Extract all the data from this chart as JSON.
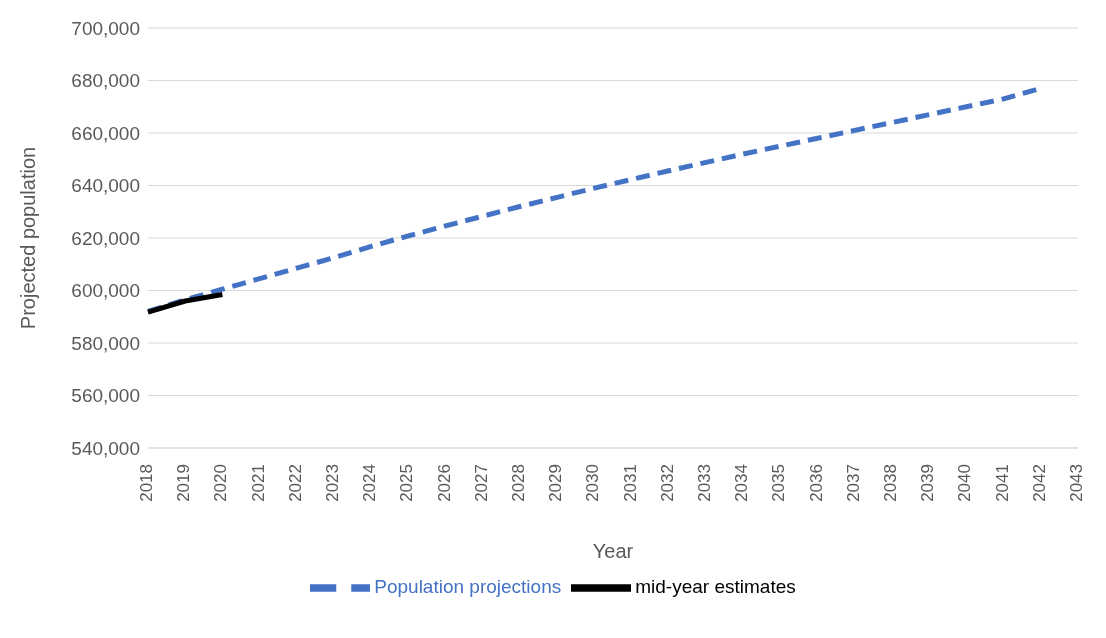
{
  "chart_data": {
    "type": "line",
    "xlabel": "Year",
    "ylabel": "Projected population",
    "categories": [
      "2018",
      "2019",
      "2020",
      "2021",
      "2022",
      "2023",
      "2024",
      "2025",
      "2026",
      "2027",
      "2028",
      "2029",
      "2030",
      "2031",
      "2032",
      "2033",
      "2034",
      "2035",
      "2036",
      "2037",
      "2038",
      "2039",
      "2040",
      "2041",
      "2042",
      "2043"
    ],
    "series": [
      {
        "name": "Population projections",
        "color": "#4472c4",
        "line_style": "dashed",
        "values": [
          592000,
          596500,
          600500,
          604500,
          608500,
          612500,
          616800,
          620800,
          624600,
          628300,
          632000,
          635500,
          639000,
          642300,
          645600,
          648800,
          652000,
          655000,
          658000,
          661000,
          664000,
          667000,
          670000,
          673000,
          677000,
          null
        ]
      },
      {
        "name": "mid-year estimates",
        "color": "#000000",
        "line_style": "solid",
        "values": [
          591800,
          596000,
          598500,
          null,
          null,
          null,
          null,
          null,
          null,
          null,
          null,
          null,
          null,
          null,
          null,
          null,
          null,
          null,
          null,
          null,
          null,
          null,
          null,
          null,
          null,
          null
        ]
      }
    ],
    "ylim": [
      540000,
      700000
    ],
    "yticks": [
      {
        "value": 540000,
        "label": "540,000"
      },
      {
        "value": 560000,
        "label": "560,000"
      },
      {
        "value": 580000,
        "label": "580,000"
      },
      {
        "value": 600000,
        "label": "600,000"
      },
      {
        "value": 620000,
        "label": "620,000"
      },
      {
        "value": 640000,
        "label": "640,000"
      },
      {
        "value": 660000,
        "label": "660,000"
      },
      {
        "value": 680000,
        "label": "680,000"
      },
      {
        "value": 700000,
        "label": "700,000"
      }
    ],
    "grid": "y",
    "legend": "bottom",
    "marker": "none"
  }
}
